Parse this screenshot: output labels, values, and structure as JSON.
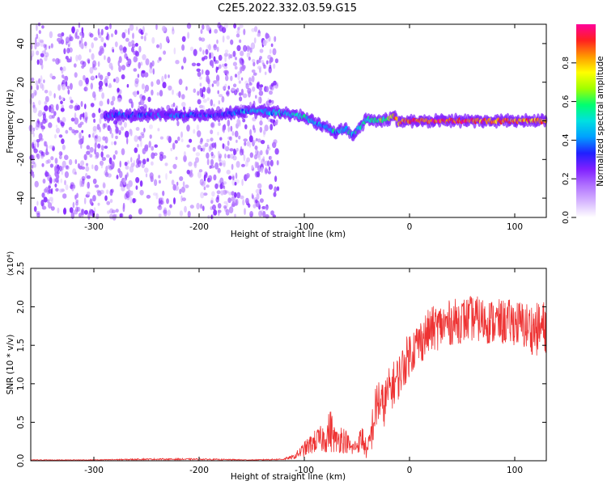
{
  "title": "C2E5.2022.332.03.59.G15",
  "chart_data": [
    {
      "type": "heatmap",
      "name": "spectrogram",
      "xlabel": "Height of straight line (km)",
      "ylabel": "Frequency (Hz)",
      "xlim": [
        -360,
        130
      ],
      "ylim": [
        -50,
        50
      ],
      "xticks": [
        -300,
        -200,
        -100,
        0,
        100
      ],
      "yticks": [
        -40,
        -20,
        0,
        20,
        40
      ],
      "colorbar": {
        "label": "Normalized spectral amplitude",
        "range": [
          0,
          1
        ],
        "ticks": [
          "0.0",
          "0.2",
          "0.4",
          "0.6",
          "0.8"
        ],
        "tick_values": [
          0.0,
          0.2,
          0.4,
          0.6,
          0.8
        ]
      },
      "colors": [
        "#ffffff",
        "#d6b6ff",
        "#b070ff",
        "#8020ff",
        "#2020ff",
        "#00a0ff",
        "#00e0e0",
        "#00ff70",
        "#a0ff00",
        "#ffff00",
        "#ff9900",
        "#ff2020",
        "#ff0099"
      ],
      "signal_track": {
        "x": [
          -290,
          -260,
          -230,
          -200,
          -180,
          -160,
          -140,
          -120,
          -100,
          -90,
          -80,
          -70,
          -60,
          -55,
          -50,
          -40,
          -30,
          -20,
          -15,
          -10,
          -5,
          0,
          50,
          100,
          130
        ],
        "frequency": [
          3,
          3,
          3,
          3,
          3,
          5,
          5,
          4,
          2,
          -1,
          -3,
          -6,
          -4,
          -8,
          -5,
          1,
          0,
          1,
          3,
          -1,
          0,
          0,
          0,
          0,
          0
        ],
        "amplitude": [
          0.3,
          0.35,
          0.3,
          0.35,
          0.3,
          0.4,
          0.45,
          0.45,
          0.5,
          0.45,
          0.45,
          0.45,
          0.5,
          0.45,
          0.5,
          0.55,
          0.55,
          0.6,
          0.8,
          0.8,
          0.85,
          0.9,
          0.9,
          0.85,
          0.85
        ]
      },
      "noise_region_x": [
        -360,
        -125
      ]
    },
    {
      "type": "line",
      "name": "snr",
      "xlabel": "Height of straight line (km)",
      "ylabel": "SNR (10 * v/v)",
      "yscale_label": "(x10⁴)",
      "xlim": [
        -360,
        130
      ],
      "ylim": [
        0,
        2.5
      ],
      "xticks": [
        -300,
        -200,
        -100,
        0,
        100
      ],
      "yticks": [
        "0.0",
        "0.5",
        "1.0",
        "1.5",
        "2.0",
        "2.5"
      ],
      "ytick_values": [
        0,
        0.5,
        1.0,
        1.5,
        2.0,
        2.5
      ],
      "line_color": "#ee3333",
      "series": [
        {
          "name": "SNR",
          "x": [
            -360,
            -300,
            -250,
            -200,
            -150,
            -120,
            -110,
            -100,
            -90,
            -80,
            -75,
            -70,
            -65,
            -60,
            -55,
            -50,
            -45,
            -40,
            -35,
            -30,
            -25,
            -20,
            -15,
            -10,
            -5,
            0,
            10,
            20,
            30,
            40,
            60,
            80,
            100,
            120,
            130
          ],
          "values": [
            0.01,
            0.01,
            0.02,
            0.02,
            0.01,
            0.02,
            0.05,
            0.15,
            0.25,
            0.3,
            0.4,
            0.25,
            0.3,
            0.25,
            0.15,
            0.2,
            0.3,
            0.1,
            0.45,
            0.8,
            0.7,
            0.9,
            1.0,
            1.1,
            1.25,
            1.4,
            1.55,
            1.7,
            1.75,
            1.8,
            1.85,
            1.8,
            1.8,
            1.7,
            1.75
          ],
          "noise_amplitude": [
            0.005,
            0.005,
            0.01,
            0.01,
            0.005,
            0.01,
            0.03,
            0.1,
            0.15,
            0.2,
            0.3,
            0.15,
            0.2,
            0.15,
            0.1,
            0.1,
            0.2,
            0.1,
            0.3,
            0.35,
            0.3,
            0.3,
            0.3,
            0.3,
            0.3,
            0.3,
            0.3,
            0.3,
            0.3,
            0.3,
            0.3,
            0.3,
            0.3,
            0.35,
            0.35
          ]
        }
      ]
    }
  ]
}
